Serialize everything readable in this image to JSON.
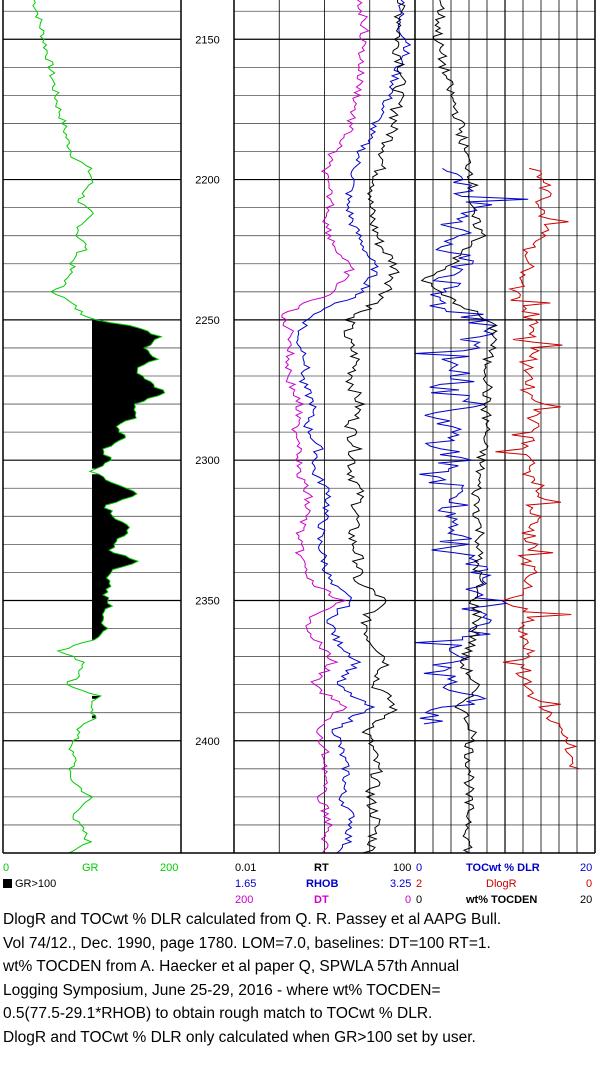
{
  "colors": {
    "gr": "#00cc00",
    "rt": "#000000",
    "rhob": "#0000cc",
    "dt": "#cc00cc",
    "toc_dlr": "#0000cc",
    "dlogr": "#cc0000",
    "tocden": "#000000",
    "fill": "#000000"
  },
  "chart_data": {
    "type": "line",
    "depth_axis": {
      "range": [
        2136,
        2440
      ],
      "ticks": [
        2150,
        2200,
        2250,
        2300,
        2350,
        2400
      ],
      "tick_labels": [
        "2150",
        "2200",
        "2250",
        "2300",
        "2350",
        "2400"
      ]
    },
    "tracks": [
      {
        "name": "gamma-ray",
        "curves": [
          {
            "label": "GR",
            "min": "0",
            "max": "200",
            "range": [
              0,
              200
            ],
            "color": "#00cc00"
          }
        ],
        "legend": {
          "swatch_label": "GR>100"
        },
        "fill_cutoff": 100,
        "depth": [
          2136,
          2142,
          2150,
          2158,
          2166,
          2174,
          2180,
          2186,
          2192,
          2196,
          2200,
          2204,
          2208,
          2212,
          2216,
          2220,
          2224,
          2228,
          2232,
          2236,
          2240,
          2244,
          2248,
          2250,
          2252,
          2256,
          2260,
          2264,
          2268,
          2272,
          2276,
          2280,
          2284,
          2288,
          2292,
          2296,
          2300,
          2304,
          2308,
          2312,
          2316,
          2320,
          2324,
          2328,
          2332,
          2336,
          2340,
          2344,
          2348,
          2352,
          2356,
          2360,
          2364,
          2368,
          2372,
          2376,
          2380,
          2384,
          2388,
          2392,
          2396,
          2400,
          2404,
          2408,
          2412,
          2416,
          2420,
          2424,
          2428,
          2432,
          2436,
          2440
        ],
        "values": [
          35,
          40,
          46,
          52,
          57,
          62,
          68,
          72,
          80,
          96,
          100,
          93,
          86,
          98,
          88,
          84,
          94,
          80,
          76,
          72,
          58,
          76,
          90,
          108,
          142,
          178,
          162,
          172,
          150,
          166,
          182,
          146,
          152,
          130,
          138,
          112,
          120,
          98,
          122,
          150,
          116,
          122,
          142,
          132,
          118,
          154,
          118,
          122,
          114,
          120,
          110,
          118,
          104,
          62,
          92,
          88,
          72,
          108,
          96,
          102,
          86,
          80,
          76,
          82,
          72,
          84,
          98,
          86,
          80,
          90,
          96,
          78
        ]
      },
      {
        "name": "depth-track"
      },
      {
        "name": "resistivity-density-sonic",
        "curves": [
          {
            "label": "RT",
            "min": "0.01",
            "max": "100",
            "range": [
              0.01,
              100
            ],
            "scale": "log",
            "color": "#000000"
          },
          {
            "label": "RHOB",
            "min": "1.65",
            "max": "3.25",
            "range": [
              1.65,
              3.25
            ],
            "color": "#0000cc"
          },
          {
            "label": "DT",
            "min": "200",
            "max": "0",
            "range": [
              200,
              0
            ],
            "color": "#cc00cc"
          }
        ],
        "depth": [
          2136,
          2144,
          2152,
          2160,
          2168,
          2176,
          2184,
          2192,
          2200,
          2208,
          2216,
          2224,
          2232,
          2240,
          2248,
          2256,
          2264,
          2272,
          2280,
          2288,
          2296,
          2304,
          2312,
          2320,
          2328,
          2336,
          2344,
          2350,
          2356,
          2364,
          2372,
          2380,
          2388,
          2396,
          2404,
          2412,
          2420,
          2428,
          2436,
          2440
        ],
        "rt": [
          45,
          50,
          40,
          55,
          45,
          40,
          30,
          20,
          15,
          10,
          12,
          18,
          40,
          25,
          4,
          3,
          5,
          4,
          6,
          4,
          5,
          4,
          6,
          5,
          4,
          6,
          5,
          20,
          8,
          10,
          25,
          12,
          35,
          8,
          12,
          15,
          10,
          14,
          12,
          10
        ],
        "rhob": [
          3.15,
          3.1,
          3.2,
          3.1,
          3.05,
          2.95,
          2.85,
          2.75,
          2.7,
          2.65,
          2.7,
          2.8,
          2.9,
          2.8,
          2.35,
          2.2,
          2.3,
          2.25,
          2.35,
          2.3,
          2.4,
          2.35,
          2.5,
          2.45,
          2.4,
          2.45,
          2.5,
          2.7,
          2.5,
          2.55,
          2.75,
          2.55,
          2.85,
          2.55,
          2.6,
          2.65,
          2.6,
          2.7,
          2.65,
          2.6
        ],
        "dt": [
          62,
          55,
          58,
          60,
          62,
          68,
          75,
          95,
          100,
          92,
          98,
          88,
          72,
          90,
          148,
          135,
          140,
          138,
          128,
          132,
          125,
          130,
          118,
          120,
          130,
          125,
          115,
          80,
          120,
          110,
          90,
          115,
          78,
          110,
          100,
          98,
          105,
          95,
          100,
          102
        ]
      },
      {
        "name": "toc-dlogr",
        "curves": [
          {
            "label": "TOCwt % DLR",
            "min": "0",
            "max": "20",
            "range": [
              0,
              20
            ],
            "color": "#0000cc"
          },
          {
            "label": "DlogR",
            "min": "2",
            "max": "0",
            "range": [
              2,
              0
            ],
            "color": "#cc0000"
          },
          {
            "label": "wt% TOCDEN",
            "min": "0",
            "max": "20",
            "range": [
              0,
              20
            ],
            "color": "#000000"
          }
        ],
        "depth_toc": [
          2196,
          2200,
          2205,
          2210,
          2215,
          2220,
          2225,
          2230,
          2235,
          2240,
          2245,
          2250,
          2255,
          2260,
          2265,
          2270,
          2275,
          2280,
          2285,
          2290,
          2295,
          2300,
          2305,
          2310,
          2315,
          2320,
          2325,
          2330,
          2335,
          2340,
          2345,
          2350,
          2355,
          2360,
          2365,
          2370,
          2375,
          2380,
          2385,
          2390,
          2394
        ],
        "toc_dlr": [
          4,
          6,
          5,
          7,
          4,
          5,
          3,
          6,
          4,
          2,
          3,
          8,
          7,
          6,
          4,
          5,
          3,
          6,
          2,
          4,
          3,
          5,
          2,
          4,
          5,
          3,
          6,
          4,
          5,
          7,
          6,
          9,
          6,
          8,
          4,
          6,
          2,
          4,
          6,
          3,
          2
        ],
        "depth_dlogr": [
          2196,
          2200,
          2205,
          2210,
          2215,
          2220,
          2225,
          2230,
          2235,
          2240,
          2245,
          2250,
          2255,
          2260,
          2265,
          2270,
          2275,
          2280,
          2285,
          2290,
          2295,
          2300,
          2305,
          2310,
          2315,
          2320,
          2325,
          2330,
          2335,
          2340,
          2345,
          2350,
          2355,
          2360,
          2365,
          2370,
          2375,
          2380,
          2385,
          2390,
          2395,
          2400,
          2405,
          2410
        ],
        "dlogr": [
          0.7,
          0.6,
          0.5,
          0.65,
          0.55,
          0.6,
          0.75,
          0.7,
          0.8,
          0.9,
          0.85,
          0.7,
          0.75,
          0.65,
          0.8,
          0.7,
          0.75,
          0.6,
          0.7,
          0.65,
          0.8,
          0.7,
          0.75,
          0.6,
          0.7,
          0.65,
          0.75,
          0.7,
          0.8,
          0.7,
          0.75,
          1.0,
          0.7,
          0.8,
          0.75,
          0.7,
          0.85,
          0.75,
          0.7,
          0.55,
          0.4,
          0.3,
          0.25,
          0.2
        ],
        "depth_tocden": [
          2136,
          2150,
          2160,
          2170,
          2180,
          2190,
          2200,
          2210,
          2220,
          2230,
          2236,
          2240,
          2248,
          2252,
          2256,
          2264,
          2272,
          2280,
          2288,
          2296,
          2304,
          2312,
          2320,
          2328,
          2336,
          2344,
          2350,
          2356,
          2364,
          2372,
          2380,
          2388,
          2396,
          2404,
          2412,
          2420,
          2428,
          2436,
          2440
        ],
        "tocden": [
          3,
          2.5,
          3.2,
          4,
          5,
          5.5,
          6.5,
          6,
          7.5,
          4,
          1,
          2.5,
          7,
          8.5,
          9,
          8,
          8.2,
          7.8,
          8,
          7.5,
          7.2,
          6.8,
          7,
          7.3,
          6.9,
          7.1,
          6.5,
          7,
          6.5,
          5.2,
          6.8,
          5,
          6.5,
          6,
          6.2,
          5.8,
          6.1,
          5.9,
          6
        ]
      }
    ],
    "caption": [
      "DlogR and TOCwt % DLR calculated from Q. R. Passey et al AAPG Bull.",
      "Vol 74/12., Dec. 1990, page 1780.  LOM=7.0, baselines: DT=100 RT=1.",
      "wt% TOCDEN from A. Haecker et al paper Q, SPWLA 57th Annual",
      "Logging Symposium, June 25-29, 2016 - where wt% TOCDEN=",
      "0.5(77.5-29.1*RHOB) to obtain rough match to TOCwt % DLR.",
      "DlogR and TOCwt % DLR only calculated when GR>100 set by user."
    ]
  }
}
